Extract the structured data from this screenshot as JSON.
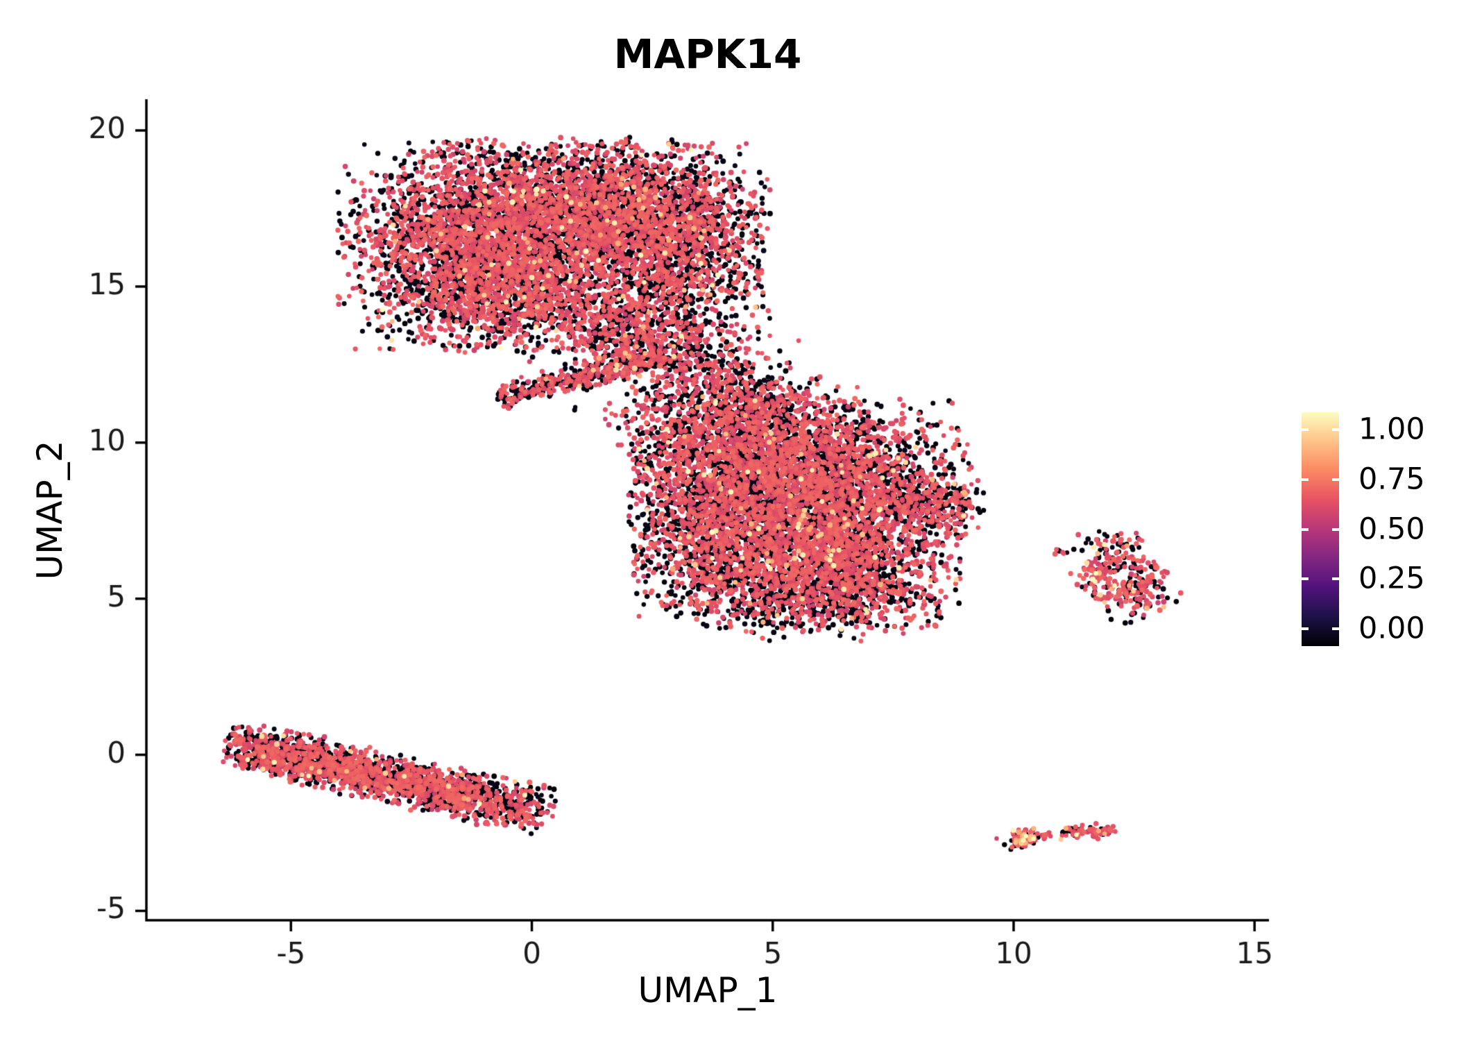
{
  "title": "MAPK14",
  "axes": {
    "x_label": "UMAP_1",
    "y_label": "UMAP_2"
  },
  "legend": {
    "labels": [
      "1.00",
      "0.75",
      "0.50",
      "0.25",
      "0.00"
    ],
    "values": [
      1.0,
      0.75,
      0.5,
      0.25,
      0.0
    ]
  },
  "chart_data": {
    "type": "scatter",
    "title": "MAPK14",
    "xlabel": "UMAP_1",
    "ylabel": "UMAP_2",
    "x_ticks": [
      -5,
      0,
      5,
      10,
      15
    ],
    "y_ticks": [
      -5,
      0,
      5,
      10,
      15,
      20
    ],
    "x_range": [
      -8.0,
      15.3
    ],
    "y_range": [
      -5.3,
      21.0
    ],
    "grid": false,
    "legend_position": "right",
    "colorbar": {
      "labels": [
        "1.00",
        "0.75",
        "0.50",
        "0.25",
        "0.00"
      ],
      "values": [
        1.0,
        0.75,
        0.5,
        0.25,
        0.0
      ],
      "range": [
        0.0,
        1.0
      ],
      "stops": [
        [
          0.0,
          "#000004"
        ],
        [
          0.125,
          "#1d1147"
        ],
        [
          0.25,
          "#51127c"
        ],
        [
          0.375,
          "#822681"
        ],
        [
          0.5,
          "#b73779"
        ],
        [
          0.625,
          "#e75263"
        ],
        [
          0.75,
          "#fb8861"
        ],
        [
          0.875,
          "#fec287"
        ],
        [
          1.0,
          "#fcfdbf"
        ]
      ]
    },
    "point_classes": {
      "black": [
        0.0,
        0.04
      ],
      "rose": [
        0.55,
        0.68
      ],
      "light": [
        0.8,
        1.0
      ]
    },
    "default_mix": {
      "light": 0.015,
      "black": 0.45,
      "rose": 0.535
    },
    "seed": 42,
    "point_radius_px": [
      3.2,
      4.0
    ],
    "clusters": [
      {
        "name": "top-blob-left",
        "type": "gauss",
        "c": [
          -1.5,
          16.3
        ],
        "s": [
          1.1,
          1.5
        ],
        "n": 2300,
        "clip": [
          -4.2,
          99,
          12.6,
          19.85
        ]
      },
      {
        "name": "top-blob-mid",
        "type": "gauss",
        "c": [
          0.9,
          17.4
        ],
        "s": [
          1.3,
          1.05
        ],
        "n": 2100,
        "clip": [
          -99,
          99,
          -99,
          19.9
        ]
      },
      {
        "name": "top-blob-right",
        "type": "gauss",
        "c": [
          2.9,
          16.5
        ],
        "s": [
          1.0,
          1.4
        ],
        "n": 1700,
        "clip": [
          -99,
          4.95,
          -99,
          19.8
        ]
      },
      {
        "name": "top-blob-lowerleft",
        "type": "gauss",
        "c": [
          -0.1,
          14.8
        ],
        "s": [
          1.0,
          0.85
        ],
        "n": 800
      },
      {
        "name": "top-blob-tongue",
        "type": "gauss",
        "c": [
          1.9,
          13.9
        ],
        "s": [
          0.95,
          0.75
        ],
        "n": 550
      },
      {
        "name": "top-blob-drip",
        "type": "gauss",
        "c": [
          2.7,
          12.8
        ],
        "s": [
          0.85,
          0.55
        ],
        "n": 230
      },
      {
        "name": "bridge-band",
        "type": "band",
        "p1": [
          -0.6,
          11.45
        ],
        "p2": [
          2.9,
          12.9
        ],
        "sigma": 0.2,
        "n": 420
      },
      {
        "name": "bridge-scatter",
        "type": "gauss",
        "c": [
          3.9,
          11.9
        ],
        "s": [
          0.8,
          0.7
        ],
        "n": 240
      },
      {
        "name": "bridge-sparse",
        "type": "gauss",
        "c": [
          2.3,
          10.9
        ],
        "s": [
          0.7,
          0.45
        ],
        "n": 60
      },
      {
        "name": "mid-blob-upleft",
        "type": "gauss",
        "c": [
          4.3,
          9.3
        ],
        "s": [
          1.25,
          1.2
        ],
        "n": 2100,
        "clip": [
          2.0,
          99,
          -99,
          99
        ]
      },
      {
        "name": "mid-blob-upright",
        "type": "gauss",
        "c": [
          6.4,
          8.7
        ],
        "s": [
          1.2,
          1.2
        ],
        "n": 2000
      },
      {
        "name": "mid-blob-lowleft",
        "type": "gauss",
        "c": [
          4.4,
          6.7
        ],
        "s": [
          1.25,
          1.0
        ],
        "n": 1500,
        "clip": [
          2.1,
          99,
          -99,
          99
        ]
      },
      {
        "name": "mid-blob-lowright",
        "type": "gauss",
        "c": [
          6.6,
          6.0
        ],
        "s": [
          1.0,
          0.9
        ],
        "n": 1100
      },
      {
        "name": "mid-blob-right-tail",
        "type": "gauss",
        "c": [
          8.2,
          7.9
        ],
        "s": [
          0.55,
          0.5
        ],
        "n": 260
      },
      {
        "name": "mid-blob-bottom-dark",
        "type": "gauss",
        "c": [
          5.6,
          4.8
        ],
        "s": [
          1.3,
          0.5
        ],
        "n": 450,
        "mix": {
          "light": 0.01,
          "black": 0.62,
          "rose": 0.37
        }
      },
      {
        "name": "mid-blob-top-arm",
        "type": "gauss",
        "c": [
          4.4,
          11.2
        ],
        "s": [
          0.9,
          0.6
        ],
        "n": 330
      },
      {
        "name": "mid-blob-tip",
        "type": "gauss",
        "c": [
          8.85,
          8.1
        ],
        "s": [
          0.2,
          0.15
        ],
        "n": 25
      },
      {
        "name": "stray-below-mid",
        "type": "gauss",
        "c": [
          6.75,
          3.7
        ],
        "s": [
          0.06,
          0.06
        ],
        "n": 2
      },
      {
        "name": "bottomleft-band-main",
        "type": "band",
        "p1": [
          -6.15,
          0.35
        ],
        "p2": [
          0.1,
          -1.8
        ],
        "sigma": 0.36,
        "n": 1500
      },
      {
        "name": "bottomleft-band-core",
        "type": "band",
        "p1": [
          -5.6,
          0.05
        ],
        "p2": [
          -1.2,
          -1.35
        ],
        "sigma": 0.28,
        "n": 600
      },
      {
        "name": "right-ring",
        "type": "ring",
        "c": [
          12.25,
          5.75
        ],
        "r": 0.62,
        "jitter": 0.2,
        "n": 230,
        "mix": {
          "light": 0.05,
          "black": 0.33,
          "rose": 0.62
        }
      },
      {
        "name": "right-ring-bottom",
        "type": "gauss",
        "c": [
          12.55,
          4.85
        ],
        "s": [
          0.4,
          0.28
        ],
        "n": 60,
        "mix": {
          "light": 0.05,
          "black": 0.35,
          "rose": 0.6
        }
      },
      {
        "name": "right-ring-top",
        "type": "gauss",
        "c": [
          12.1,
          6.75
        ],
        "s": [
          0.35,
          0.18
        ],
        "n": 45,
        "mix": {
          "light": 0.05,
          "black": 0.4,
          "rose": 0.55
        }
      },
      {
        "name": "right-isolated-dots",
        "type": "gauss",
        "c": [
          11.05,
          6.5
        ],
        "s": [
          0.12,
          0.09
        ],
        "n": 8
      },
      {
        "name": "bottomright-compact",
        "type": "gauss",
        "c": [
          10.15,
          -2.72
        ],
        "s": [
          0.22,
          0.16
        ],
        "n": 85,
        "mix": {
          "light": 0.15,
          "black": 0.25,
          "rose": 0.6
        }
      },
      {
        "name": "bottomright-elongated",
        "type": "band",
        "p1": [
          11.05,
          -2.5
        ],
        "p2": [
          12.05,
          -2.42
        ],
        "sigma": 0.12,
        "n": 70,
        "mix": {
          "light": 0.08,
          "black": 0.3,
          "rose": 0.62
        }
      },
      {
        "name": "bottomright-tiny",
        "type": "gauss",
        "c": [
          10.7,
          -2.6
        ],
        "s": [
          0.06,
          0.05
        ],
        "n": 4
      }
    ]
  }
}
